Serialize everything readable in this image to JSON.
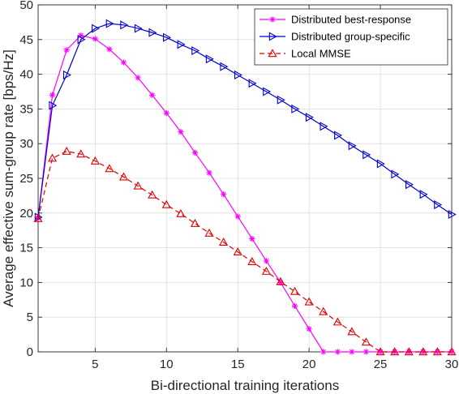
{
  "chart_data": {
    "type": "line",
    "title": "",
    "xlabel": "Bi-directional training iterations",
    "ylabel": "Average effective sum-group rate [bps/Hz]",
    "xlim": [
      1,
      30
    ],
    "ylim": [
      0,
      50
    ],
    "xticks": [
      5,
      10,
      15,
      20,
      25,
      30
    ],
    "yticks": [
      0,
      5,
      10,
      15,
      20,
      25,
      30,
      35,
      40,
      45,
      50
    ],
    "grid": true,
    "legend_position": "top-right",
    "x": [
      1,
      2,
      3,
      4,
      5,
      6,
      7,
      8,
      9,
      10,
      11,
      12,
      13,
      14,
      15,
      16,
      17,
      18,
      19,
      20,
      21,
      22,
      23,
      24,
      25,
      26,
      27,
      28,
      29,
      30
    ],
    "series": [
      {
        "name": "Distributed best-response",
        "color": "#ff00ff",
        "marker": "asterisk",
        "dash": "solid",
        "values": [
          19.3,
          37.0,
          43.5,
          45.6,
          45.1,
          43.6,
          41.7,
          39.5,
          37.0,
          34.4,
          31.7,
          28.7,
          25.8,
          22.7,
          19.5,
          16.3,
          13.1,
          10.0,
          6.6,
          3.3,
          0,
          0,
          0,
          0,
          0,
          0,
          0,
          0,
          0,
          0
        ]
      },
      {
        "name": "Distributed group-specific",
        "color": "#0000cc",
        "marker": "triangle-right",
        "dash": "solid",
        "values": [
          19.4,
          35.5,
          39.9,
          45.0,
          46.6,
          47.3,
          47.1,
          46.6,
          46.0,
          45.3,
          44.3,
          43.4,
          42.2,
          41.1,
          39.9,
          38.7,
          37.5,
          36.3,
          35.0,
          33.8,
          32.5,
          31.2,
          29.7,
          28.4,
          27.1,
          25.6,
          24.1,
          22.7,
          21.2,
          19.8
        ]
      },
      {
        "name": "Local MMSE",
        "color": "#dd0000",
        "marker": "triangle-up",
        "dash": "dashed",
        "values": [
          19.2,
          27.9,
          28.9,
          28.5,
          27.5,
          26.4,
          25.2,
          23.9,
          22.6,
          21.2,
          19.9,
          18.5,
          17.1,
          15.8,
          14.4,
          13.0,
          11.6,
          10.1,
          8.7,
          7.2,
          5.8,
          4.3,
          2.9,
          1.4,
          0,
          0,
          0,
          0,
          0,
          0
        ]
      }
    ]
  }
}
